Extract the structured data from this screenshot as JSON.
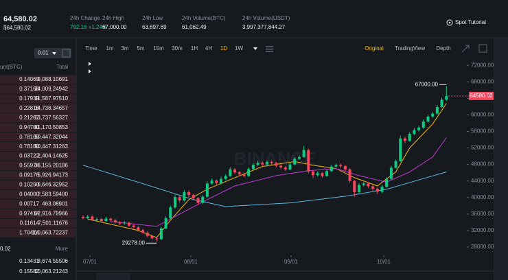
{
  "header": {
    "price": "64,580.02",
    "price_usd": "$64,580.02",
    "stats": [
      {
        "label": "24h Change",
        "value": "792.16 +1.24%"
      },
      {
        "label": "24h High",
        "value": "67,000.00"
      },
      {
        "label": "24h Low",
        "value": "63,697.69"
      },
      {
        "label": "24h Volume(BTC)",
        "value": "61,062.49"
      },
      {
        "label": "24h Volume(USDT)",
        "value": "3,997,377,844.27"
      }
    ],
    "tutorial": "Spot Tutorial"
  },
  "order_book": {
    "tick_size": "0.01",
    "columns": [
      "unt(BTC)",
      "Total"
    ],
    "asks": [
      [
        "0.14069",
        "9,088.10691"
      ],
      [
        "0.37168",
        "24,009.24942"
      ],
      [
        "0.17939",
        "11,587.97510"
      ],
      [
        "0.22816",
        "14,738.34657"
      ],
      [
        "0.21267",
        "13,737.56327"
      ],
      [
        "0.94700",
        "61,170.50853"
      ],
      [
        "0.78100",
        "50,447.32044"
      ],
      [
        "0.78100",
        "50,447.31263"
      ],
      [
        "0.03722",
        "2,404.14625"
      ],
      [
        "0.55974",
        "36,155.20186"
      ],
      [
        "0.09176",
        "5,926.94173"
      ],
      [
        "0.10290",
        "6,646.32952"
      ],
      [
        "0.04000",
        "2,583.59400"
      ],
      [
        "0.00717",
        "463.08901"
      ],
      [
        "0.97414",
        "62,916.79966"
      ],
      [
        "0.11614",
        "7,501.11676"
      ],
      [
        "1.70414",
        "110,063.72237"
      ]
    ],
    "depth_step": "0.02",
    "more": "More",
    "bids": [
      [
        "0.13431",
        "8,674.55506"
      ],
      [
        "0.15582",
        "10,063.21243"
      ]
    ]
  },
  "toolbar": {
    "intervals": [
      "Time",
      "1m",
      "3m",
      "5m",
      "15m",
      "30m",
      "1H",
      "4H",
      "1D",
      "1W"
    ],
    "active": "1D",
    "views": [
      "Original",
      "TradingView",
      "Depth"
    ],
    "active_view": "Original"
  },
  "chart": {
    "type": "candlestick",
    "watermark": "BINANCE",
    "up_color": "#0ecb81",
    "down_color": "#f6465d",
    "candles": [
      [
        35300,
        35700,
        34700,
        35000
      ],
      [
        35000,
        35800,
        34800,
        35400
      ],
      [
        35400,
        35600,
        34300,
        34600
      ],
      [
        34600,
        35200,
        34300,
        34800
      ],
      [
        34800,
        35000,
        33900,
        34300
      ],
      [
        34300,
        35300,
        34100,
        34900
      ],
      [
        34900,
        35100,
        34200,
        34500
      ],
      [
        34500,
        34800,
        33700,
        34000
      ],
      [
        34000,
        34300,
        33300,
        33700
      ],
      [
        33700,
        34300,
        33400,
        33900
      ],
      [
        33900,
        34100,
        32900,
        33200
      ],
      [
        33200,
        33600,
        32500,
        32800
      ],
      [
        32800,
        33100,
        31800,
        32100
      ],
      [
        32100,
        32400,
        31200,
        31500
      ],
      [
        31500,
        31800,
        30400,
        30700
      ],
      [
        30700,
        31000,
        29800,
        30100
      ],
      [
        30100,
        30500,
        29278,
        29900
      ],
      [
        29900,
        32900,
        29700,
        32500
      ],
      [
        32500,
        35400,
        32300,
        35000
      ],
      [
        35000,
        38000,
        34800,
        37600
      ],
      [
        37600,
        40600,
        37300,
        40100
      ],
      [
        40100,
        40500,
        38800,
        39300
      ],
      [
        39300,
        41800,
        39000,
        41300
      ],
      [
        41300,
        41700,
        40100,
        40600
      ],
      [
        40600,
        40900,
        39300,
        39800
      ],
      [
        39800,
        40100,
        38200,
        38700
      ],
      [
        38700,
        40600,
        38400,
        40200
      ],
      [
        40200,
        43900,
        40000,
        43400
      ],
      [
        43400,
        44600,
        43100,
        44100
      ],
      [
        44100,
        44400,
        43000,
        43500
      ],
      [
        43500,
        45000,
        43200,
        44500
      ],
      [
        44500,
        45600,
        44200,
        45200
      ],
      [
        45200,
        47300,
        45000,
        46800
      ],
      [
        46800,
        47100,
        45700,
        46100
      ],
      [
        46100,
        46400,
        45200,
        45600
      ],
      [
        45600,
        45900,
        44800,
        45200
      ],
      [
        45200,
        47300,
        45000,
        46900
      ],
      [
        46900,
        48300,
        46600,
        47900
      ],
      [
        47900,
        48900,
        47600,
        48400
      ],
      [
        48400,
        48700,
        47600,
        48000
      ],
      [
        48000,
        49000,
        47800,
        48600
      ],
      [
        48600,
        48900,
        47900,
        48300
      ],
      [
        48300,
        48600,
        47300,
        47700
      ],
      [
        47700,
        48000,
        46900,
        47300
      ],
      [
        47300,
        47600,
        46400,
        46800
      ],
      [
        46800,
        48400,
        46600,
        48000
      ],
      [
        48000,
        49800,
        47800,
        49400
      ],
      [
        49400,
        50200,
        49100,
        49800
      ],
      [
        49800,
        52500,
        49600,
        51500
      ],
      [
        51500,
        51800,
        45900,
        46300
      ],
      [
        46300,
        46600,
        44700,
        45400
      ],
      [
        45400,
        46300,
        45100,
        45900
      ],
      [
        45900,
        46200,
        44800,
        45200
      ],
      [
        45200,
        46800,
        45000,
        46400
      ],
      [
        46400,
        47900,
        46200,
        47500
      ],
      [
        47500,
        48300,
        47200,
        47900
      ],
      [
        47900,
        48200,
        47200,
        47600
      ],
      [
        47600,
        47900,
        46400,
        46800
      ],
      [
        46800,
        47100,
        43600,
        44000
      ],
      [
        44000,
        44300,
        40200,
        41300
      ],
      [
        41300,
        43400,
        41000,
        43000
      ],
      [
        43000,
        43800,
        42700,
        43400
      ],
      [
        43400,
        43700,
        42300,
        42700
      ],
      [
        42700,
        43000,
        41700,
        42100
      ],
      [
        42100,
        42400,
        40800,
        41400
      ],
      [
        41400,
        43000,
        41100,
        42600
      ],
      [
        42600,
        44900,
        42400,
        44500
      ],
      [
        44500,
        47600,
        44300,
        47200
      ],
      [
        47200,
        49200,
        47000,
        48800
      ],
      [
        48800,
        55000,
        48600,
        54300
      ],
      [
        54300,
        54700,
        53200,
        53700
      ],
      [
        53700,
        55800,
        53500,
        55400
      ],
      [
        55400,
        56800,
        55100,
        56300
      ],
      [
        56300,
        57400,
        56000,
        56900
      ],
      [
        56900,
        58900,
        56600,
        58400
      ],
      [
        58400,
        60000,
        58100,
        59600
      ],
      [
        59600,
        60700,
        59300,
        60300
      ],
      [
        60300,
        62400,
        60000,
        61900
      ],
      [
        61900,
        64200,
        61700,
        63700
      ],
      [
        63700,
        67000,
        63400,
        64580.02
      ]
    ],
    "ylim": [
      26000,
      73700
    ],
    "yticks": [
      {
        "value": 72000,
        "label": "72000.00"
      },
      {
        "value": 68000,
        "label": "68000.00"
      },
      {
        "value": 64000,
        "label": "64000.00"
      },
      {
        "value": 60000,
        "label": "60000.00"
      },
      {
        "value": 56000,
        "label": "56000.00"
      },
      {
        "value": 52000,
        "label": "52000.00"
      },
      {
        "value": 48000,
        "label": "48000.00"
      },
      {
        "value": 44000,
        "label": "44000.00"
      },
      {
        "value": 40000,
        "label": "40000.00"
      },
      {
        "value": 36000,
        "label": "36000.00"
      },
      {
        "value": 32000,
        "label": "32000.00"
      },
      {
        "value": 28000,
        "label": "28000.00"
      }
    ],
    "xticks": [
      "07/01",
      "08/01",
      "09/01",
      "10/01"
    ],
    "high_label": "67000.00",
    "low_label": "29278.00",
    "ma_lines": [
      {
        "color": "#f0b90b",
        "x": [
          1,
          12,
          16,
          19,
          23,
          27,
          33,
          39,
          46,
          50,
          55,
          59,
          64,
          68,
          71,
          76,
          79
        ],
        "values": [
          34800,
          32000,
          30300,
          34500,
          39500,
          42000,
          44800,
          47500,
          48700,
          47800,
          47000,
          44800,
          42800,
          46200,
          52000,
          57800,
          62800
        ]
      },
      {
        "color": "#c13ad6",
        "x": [
          6,
          16,
          21,
          27,
          33,
          42,
          49,
          55,
          60,
          66,
          71,
          76,
          79
        ],
        "values": [
          34200,
          33000,
          36000,
          39500,
          42800,
          45300,
          46500,
          47000,
          45300,
          43700,
          46200,
          49800,
          54500
        ]
      },
      {
        "color": "#5fb5de",
        "x": [
          0,
          12,
          24,
          31,
          45,
          57,
          66,
          79
        ],
        "values": [
          47800,
          43700,
          39500,
          37800,
          38700,
          40300,
          42000,
          46200
        ]
      }
    ]
  }
}
